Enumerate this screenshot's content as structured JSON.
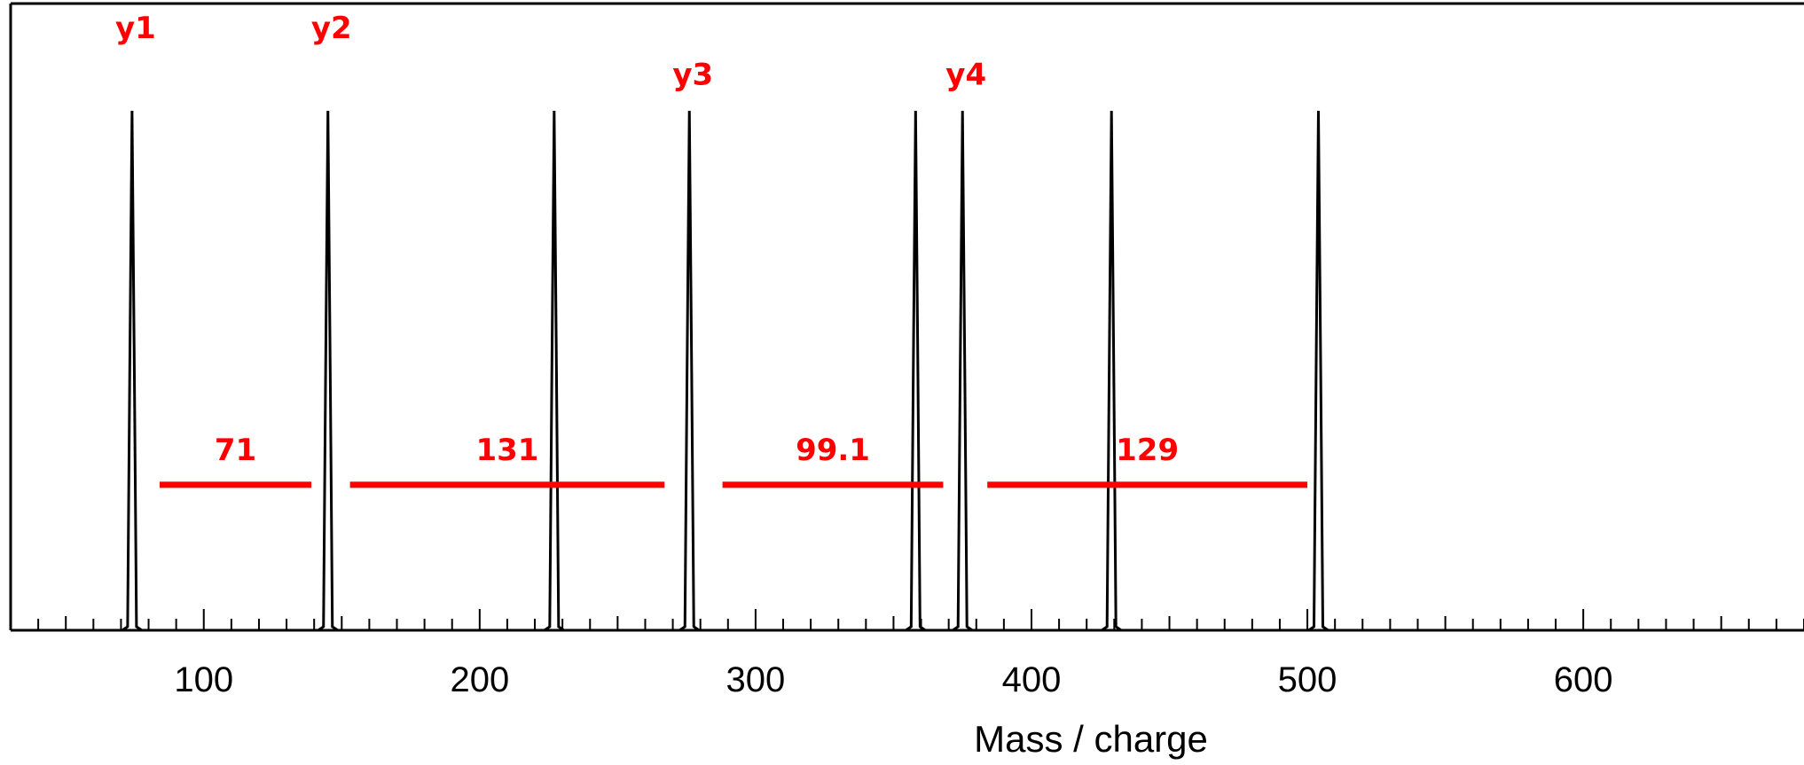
{
  "chart_data": {
    "type": "line",
    "title": "",
    "xlabel": "Mass / charge",
    "ylabel": "",
    "xlim": [
      30,
      680
    ],
    "ylim": [
      0,
      1.0
    ],
    "grid": false,
    "x_ticks": [
      100,
      200,
      300,
      400,
      500,
      600
    ],
    "x_minor_step": 10,
    "peaks": [
      {
        "x": 74,
        "height": 1.0
      },
      {
        "x": 145,
        "height": 1.0
      },
      {
        "x": 227,
        "height": 1.0
      },
      {
        "x": 276,
        "height": 1.0
      },
      {
        "x": 358,
        "height": 1.0
      },
      {
        "x": 375,
        "height": 1.0
      },
      {
        "x": 429,
        "height": 1.0
      },
      {
        "x": 504,
        "height": 1.0
      }
    ],
    "peak_labels": [
      {
        "text": "y1",
        "x": 74,
        "y": 1.14
      },
      {
        "text": "y2",
        "x": 145,
        "y": 1.14
      },
      {
        "text": "y3",
        "x": 276,
        "y": 1.05
      },
      {
        "text": "y4",
        "x": 375,
        "y": 1.05
      }
    ],
    "mass_differences": [
      {
        "label": "71",
        "x_start": 84,
        "x_end": 139,
        "y": 0.28
      },
      {
        "label": "131",
        "x_start": 153,
        "x_end": 267,
        "y": 0.28
      },
      {
        "label": "99.1",
        "x_start": 288,
        "x_end": 368,
        "y": 0.28
      },
      {
        "label": "129",
        "x_start": 384,
        "x_end": 500,
        "y": 0.28
      }
    ],
    "colors": {
      "spectrum": "#000000",
      "annotation": "#ff0000"
    }
  }
}
